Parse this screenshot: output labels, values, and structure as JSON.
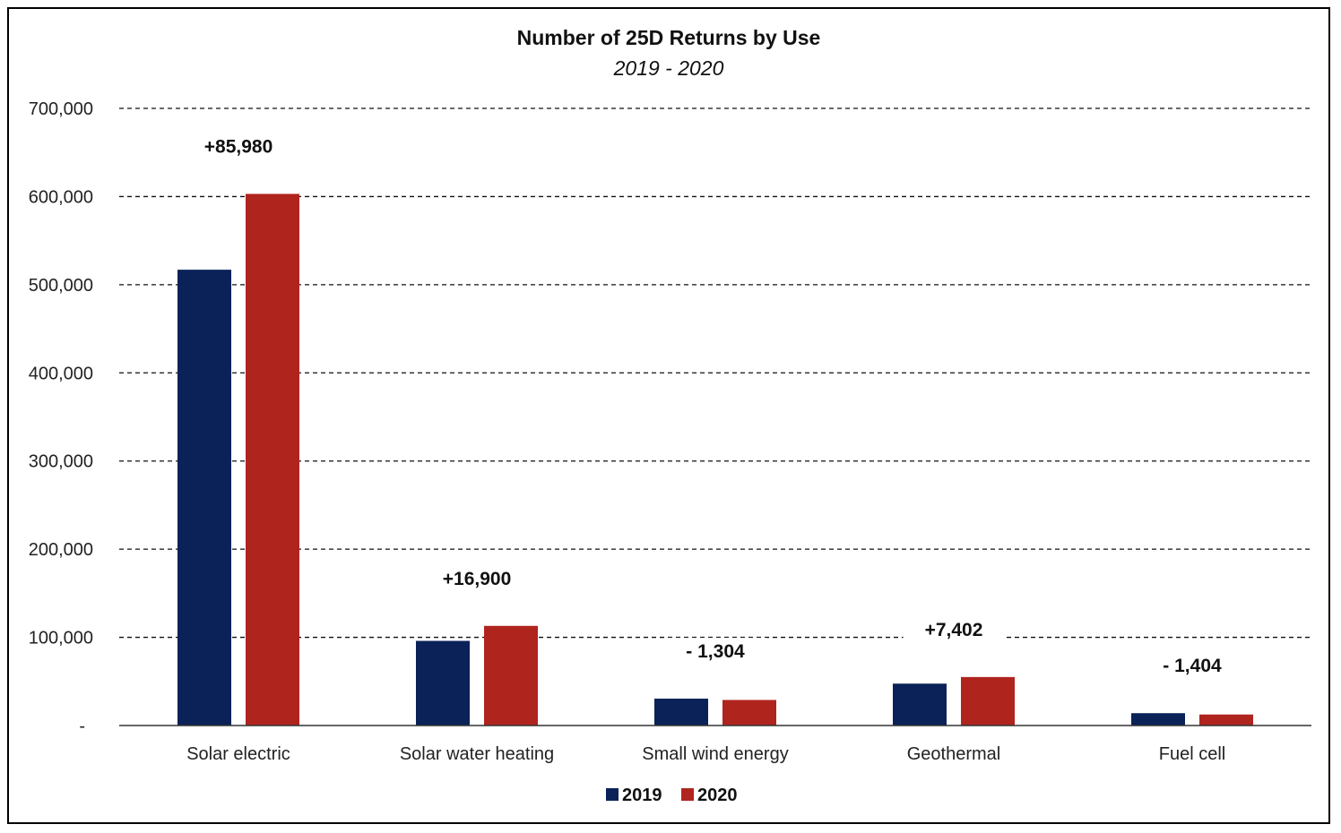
{
  "chart_data": {
    "type": "bar",
    "title": "Number of 25D Returns by Use",
    "subtitle": "2019 - 2020",
    "categories": [
      "Solar electric",
      "Solar water heating",
      "Small wind energy",
      "Geothermal",
      "Fuel cell"
    ],
    "series": [
      {
        "name": "2019",
        "color": "#0a2258",
        "values": [
          517000,
          96000,
          30500,
          47500,
          14000
        ]
      },
      {
        "name": "2020",
        "color": "#b0241e",
        "values": [
          603000,
          113000,
          29000,
          55000,
          12500
        ]
      }
    ],
    "annotations": [
      "+85,980",
      "+16,900",
      "- 1,304",
      "+7,402",
      "- 1,404"
    ],
    "ylim": [
      0,
      700000
    ],
    "yticks": [
      {
        "value": 0,
        "label": "-"
      },
      {
        "value": 100000,
        "label": "100,000"
      },
      {
        "value": 200000,
        "label": "200,000"
      },
      {
        "value": 300000,
        "label": "300,000"
      },
      {
        "value": 400000,
        "label": "400,000"
      },
      {
        "value": 500000,
        "label": "500,000"
      },
      {
        "value": 600000,
        "label": "600,000"
      },
      {
        "value": 700000,
        "label": "700,000"
      }
    ],
    "grid": true,
    "legend_position": "bottom-center"
  }
}
